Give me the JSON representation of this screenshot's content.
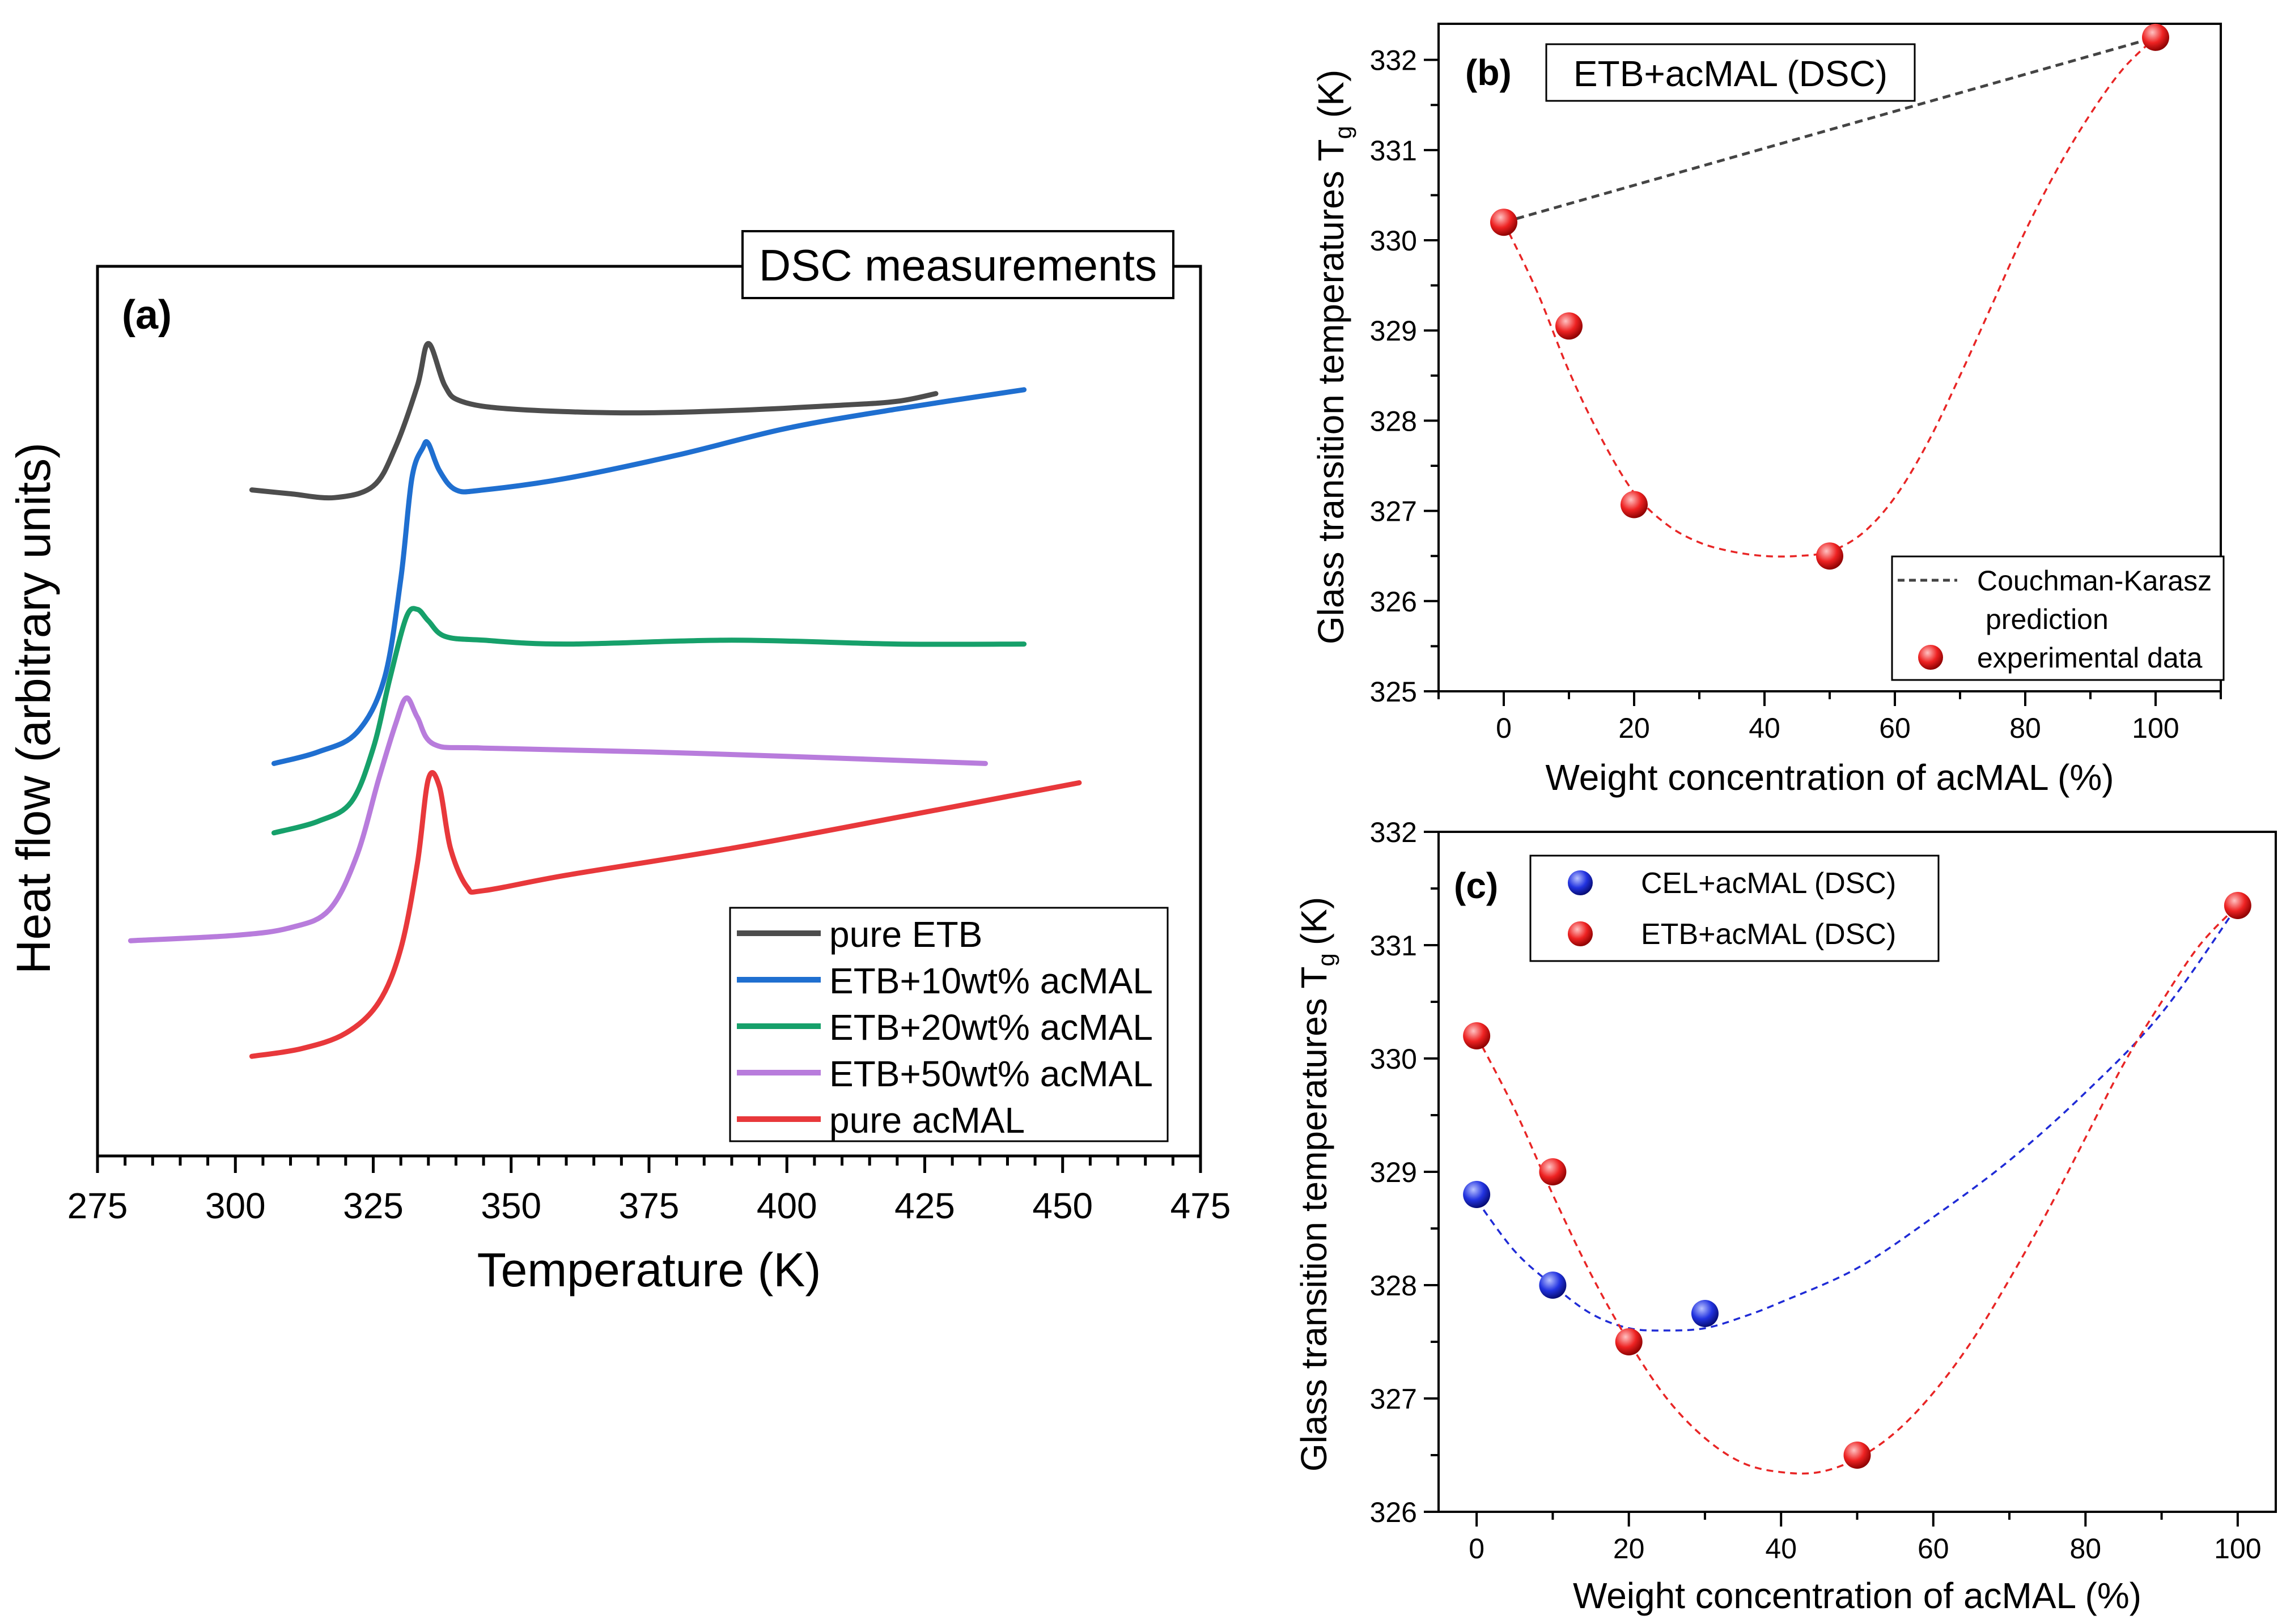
{
  "chart_data": [
    {
      "type": "line",
      "panel": "(a)",
      "title": "DSC measurements",
      "xlabel": "Temperature (K)",
      "ylabel": "Heat flow (arbitrary units)",
      "xlim": [
        275,
        475
      ],
      "xticks": [
        275,
        300,
        325,
        350,
        375,
        400,
        425,
        450,
        475
      ],
      "ylim": [
        0,
        100
      ],
      "grid": false,
      "legend_position": "bottom-right",
      "series": [
        {
          "name": "pure ETB",
          "color": "#4d4d4d",
          "x": [
            303,
            310,
            318,
            325,
            329,
            333,
            335,
            338,
            341,
            350,
            370,
            390,
            410,
            420,
            427
          ],
          "y": [
            76.5,
            76.0,
            75.5,
            77.0,
            82.0,
            90.0,
            95.5,
            90.0,
            88.0,
            87.0,
            86.5,
            86.8,
            87.5,
            88.0,
            89.0
          ]
        },
        {
          "name": "ETB+10wt% acMAL",
          "color": "#1f6fd0",
          "x": [
            307,
            315,
            322,
            327,
            330,
            332,
            334,
            335,
            337,
            340,
            345,
            360,
            380,
            400,
            420,
            443
          ],
          "y": [
            41.0,
            42.5,
            45.0,
            52.0,
            65.0,
            78.0,
            82.0,
            82.5,
            79.0,
            76.5,
            76.5,
            78.0,
            81.0,
            84.5,
            87.0,
            89.5
          ]
        },
        {
          "name": "ETB+20wt% acMAL",
          "color": "#16a06a",
          "x": [
            307,
            315,
            321,
            325,
            328,
            331,
            333,
            335,
            338,
            345,
            360,
            390,
            420,
            443
          ],
          "y": [
            32.0,
            33.5,
            36.0,
            43.0,
            52.0,
            60.0,
            61.0,
            59.5,
            57.5,
            57.0,
            56.5,
            57.0,
            56.5,
            56.5
          ]
        },
        {
          "name": "ETB+50wt% acMAL",
          "color": "#b87cdc",
          "x": [
            281,
            300,
            310,
            317,
            322,
            326,
            329,
            331,
            333,
            336,
            345,
            375,
            405,
            436
          ],
          "y": [
            18.0,
            18.7,
            19.7,
            22.0,
            29.0,
            39.0,
            46.0,
            49.5,
            47.0,
            43.5,
            43.0,
            42.5,
            41.8,
            41.0
          ]
        },
        {
          "name": "pure acMAL",
          "color": "#e8383b",
          "x": [
            303,
            312,
            320,
            326,
            330,
            333,
            335,
            337,
            339,
            342,
            345,
            360,
            390,
            420,
            453
          ],
          "y": [
            3.0,
            4.0,
            6.0,
            10.0,
            17.0,
            28.0,
            39.0,
            38.0,
            30.0,
            25.0,
            24.5,
            26.5,
            30.0,
            34.0,
            38.5
          ]
        }
      ]
    },
    {
      "type": "scatter",
      "panel": "(b)",
      "title": "ETB+acMAL (DSC)",
      "xlabel": "Weight concentration of acMAL (%)",
      "ylabel_main": "Glass transition temperatures T",
      "ylabel_sub": "g",
      "ylabel_unit": "(K)",
      "xlim": [
        -10,
        110
      ],
      "ylim": [
        325,
        332.4
      ],
      "xticks": [
        0,
        20,
        40,
        60,
        80,
        100
      ],
      "yticks": [
        325,
        326,
        327,
        328,
        329,
        330,
        331,
        332
      ],
      "legend_position": "bottom-right",
      "series": [
        {
          "name": "Couchman-Karasz prediction",
          "legend_line1": "Couchman-Karasz",
          "legend_line2": "prediction",
          "kind": "dashed-line",
          "color": "#444444",
          "x": [
            0,
            100
          ],
          "y": [
            330.2,
            332.25
          ]
        },
        {
          "name": "experimental data",
          "kind": "points",
          "color": "#e82525",
          "x": [
            0,
            10,
            20,
            50,
            100
          ],
          "y": [
            330.2,
            329.05,
            327.07,
            326.5,
            332.25
          ]
        },
        {
          "name": "fit",
          "kind": "dashed-fit",
          "color": "#e82525",
          "x": [
            0,
            5,
            10,
            15,
            20,
            25,
            30,
            35,
            40,
            45,
            50,
            55,
            60,
            65,
            70,
            75,
            80,
            85,
            90,
            95,
            100
          ],
          "y": [
            330.2,
            329.45,
            328.55,
            327.8,
            327.2,
            326.85,
            326.65,
            326.55,
            326.5,
            326.5,
            326.55,
            326.75,
            327.15,
            327.75,
            328.5,
            329.3,
            330.1,
            330.8,
            331.4,
            331.9,
            332.25
          ]
        }
      ]
    },
    {
      "type": "scatter",
      "panel": "(c)",
      "xlabel": "Weight concentration of acMAL (%)",
      "ylabel_main": "Glass transition temperatures T",
      "ylabel_sub": "g",
      "ylabel_unit": "(K)",
      "xlim": [
        -5,
        105
      ],
      "ylim": [
        326,
        332
      ],
      "xticks": [
        0,
        20,
        40,
        60,
        80,
        100
      ],
      "yticks": [
        326,
        327,
        328,
        329,
        330,
        331,
        332
      ],
      "legend_position": "top-left",
      "series": [
        {
          "name": "CEL+acMAL (DSC)",
          "kind": "points",
          "color": "#1f2bd6",
          "x": [
            0,
            10,
            30
          ],
          "y": [
            328.8,
            328.0,
            327.75
          ]
        },
        {
          "name": "CEL fit",
          "kind": "dashed-fit",
          "color": "#1f2bd6",
          "x": [
            0,
            5,
            10,
            15,
            20,
            25,
            30,
            35,
            40,
            50,
            60,
            70,
            80,
            90,
            100
          ],
          "y": [
            328.75,
            328.3,
            328.0,
            327.75,
            327.62,
            327.6,
            327.62,
            327.72,
            327.85,
            328.15,
            328.6,
            329.1,
            329.7,
            330.4,
            331.35
          ]
        },
        {
          "name": "ETB+acMAL (DSC)",
          "kind": "points",
          "color": "#e82525",
          "x": [
            0,
            10,
            20,
            50,
            100
          ],
          "y": [
            330.2,
            329.0,
            327.5,
            326.5,
            331.35
          ]
        },
        {
          "name": "ETB fit",
          "kind": "dashed-fit",
          "color": "#e82525",
          "x": [
            0,
            5,
            10,
            15,
            20,
            25,
            30,
            35,
            40,
            45,
            50,
            55,
            60,
            65,
            70,
            75,
            80,
            85,
            90,
            95,
            100
          ],
          "y": [
            330.2,
            329.55,
            328.8,
            328.1,
            327.5,
            327.0,
            326.65,
            326.43,
            326.35,
            326.35,
            326.47,
            326.7,
            327.05,
            327.5,
            328.05,
            328.65,
            329.3,
            329.95,
            330.5,
            331.0,
            331.35
          ]
        }
      ]
    }
  ]
}
